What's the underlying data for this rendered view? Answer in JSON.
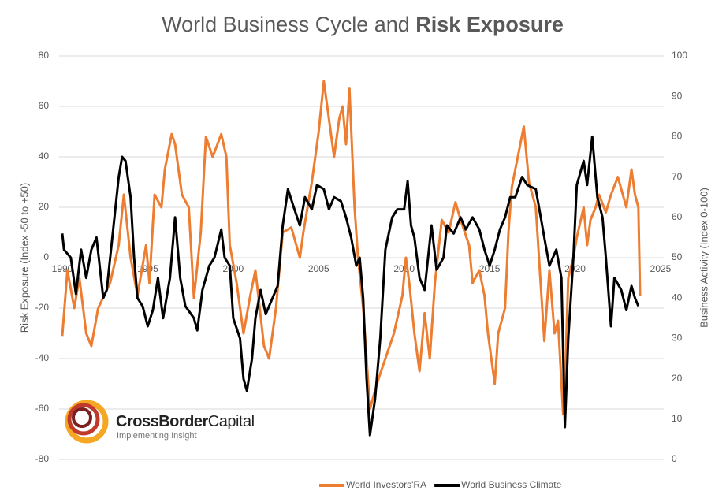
{
  "chart_data": {
    "type": "line",
    "title": {
      "text": "World Business Cycle and",
      "emphasis": "Risk Exposure"
    },
    "y_label": "Risk Exposure (Index -50 to +50)",
    "y2_label": "Business Activity (Index 0-100)",
    "xlim": [
      1990,
      2025
    ],
    "xticks": [
      1990,
      1995,
      2000,
      2005,
      2010,
      2015,
      2020,
      2025
    ],
    "ylim": [
      -80,
      80
    ],
    "yticks": [
      -80,
      -60,
      -40,
      -20,
      0,
      20,
      40,
      60,
      80
    ],
    "y2lim": [
      0,
      100
    ],
    "y2ticks": [
      0,
      10,
      20,
      30,
      40,
      50,
      60,
      70,
      80,
      90,
      100
    ],
    "grid": true,
    "legend": "bottom",
    "series": [
      {
        "name": "World Investors'RA",
        "color": "#ed7d31",
        "axis": "y",
        "x": [
          1990.0,
          1990.3,
          1990.7,
          1991.0,
          1991.4,
          1991.7,
          1992.1,
          1992.8,
          1993.3,
          1993.6,
          1994.0,
          1994.4,
          1994.9,
          1995.1,
          1995.4,
          1995.8,
          1996.0,
          1996.4,
          1996.6,
          1997.0,
          1997.4,
          1997.7,
          1998.1,
          1998.4,
          1998.8,
          1999.3,
          1999.6,
          1999.8,
          2000.2,
          2000.6,
          2001.0,
          2001.3,
          2001.8,
          2002.1,
          2002.5,
          2002.9,
          2003.4,
          2003.9,
          2004.1,
          2004.6,
          2005.0,
          2005.3,
          2005.6,
          2005.9,
          2006.2,
          2006.4,
          2006.6,
          2006.8,
          2007.1,
          2007.3,
          2007.6,
          2007.8,
          2008.0,
          2008.2,
          2008.5,
          2008.9,
          2009.4,
          2009.9,
          2010.1,
          2010.3,
          2010.6,
          2010.9,
          2011.2,
          2011.5,
          2011.8,
          2012.2,
          2012.6,
          2013.0,
          2013.3,
          2013.8,
          2014.0,
          2014.4,
          2014.7,
          2014.9,
          2015.3,
          2015.5,
          2015.9,
          2016.1,
          2016.3,
          2016.5,
          2017.0,
          2017.3,
          2017.7,
          2018.2,
          2018.5,
          2018.8,
          2019.0,
          2019.3,
          2019.4,
          2019.6,
          2019.9,
          2020.1,
          2020.5,
          2020.7,
          2020.9,
          2021.2,
          2021.4,
          2021.8,
          2022.1,
          2022.5,
          2023.0,
          2023.3,
          2023.5,
          2023.7,
          2023.8
        ],
        "values": [
          -31,
          -5,
          -20,
          -8,
          -30,
          -35,
          -20,
          -10,
          5,
          25,
          0,
          -15,
          5,
          -10,
          25,
          20,
          35,
          49,
          45,
          25,
          20,
          -16,
          10,
          48,
          40,
          49,
          40,
          5,
          -10,
          -30,
          -15,
          -5,
          -35,
          -40,
          -20,
          10,
          12,
          0,
          10,
          30,
          50,
          70,
          55,
          40,
          55,
          60,
          45,
          67,
          20,
          0,
          -20,
          -40,
          -60,
          -55,
          -48,
          -40,
          -30,
          -15,
          0,
          -10,
          -30,
          -45,
          -22,
          -40,
          -10,
          15,
          10,
          22,
          15,
          5,
          -10,
          -5,
          -15,
          -30,
          -50,
          -30,
          -20,
          10,
          28,
          35,
          52,
          30,
          20,
          -33,
          -5,
          -30,
          -25,
          -62,
          -50,
          -8,
          0,
          8,
          20,
          5,
          15,
          20,
          25,
          18,
          25,
          32,
          20,
          35,
          25,
          20,
          -15
        ]
      },
      {
        "name": "World Business Climate",
        "color": "#000000",
        "axis": "y2",
        "x": [
          1990.0,
          1990.1,
          1990.5,
          1990.8,
          1991.1,
          1991.4,
          1991.7,
          1992.0,
          1992.4,
          1992.6,
          1993.0,
          1993.3,
          1993.5,
          1993.7,
          1994.0,
          1994.2,
          1994.4,
          1994.7,
          1995.0,
          1995.3,
          1995.6,
          1995.9,
          1996.3,
          1996.6,
          1996.9,
          1997.2,
          1997.7,
          1997.9,
          1998.2,
          1998.6,
          1998.9,
          1999.3,
          1999.5,
          1999.8,
          2000.0,
          2000.4,
          2000.6,
          2000.8,
          2001.1,
          2001.3,
          2001.6,
          2001.9,
          2002.3,
          2002.6,
          2002.9,
          2003.2,
          2003.5,
          2003.9,
          2004.2,
          2004.6,
          2004.9,
          2005.3,
          2005.6,
          2005.9,
          2006.3,
          2006.6,
          2006.9,
          2007.2,
          2007.4,
          2007.6,
          2007.8,
          2008.0,
          2008.3,
          2008.6,
          2008.9,
          2009.3,
          2009.6,
          2010.0,
          2010.2,
          2010.4,
          2010.6,
          2010.9,
          2011.2,
          2011.6,
          2011.9,
          2012.3,
          2012.5,
          2012.9,
          2013.3,
          2013.6,
          2014.0,
          2014.4,
          2014.7,
          2015.0,
          2015.3,
          2015.6,
          2015.9,
          2016.2,
          2016.5,
          2016.9,
          2017.2,
          2017.7,
          2018.2,
          2018.5,
          2018.9,
          2019.2,
          2019.4,
          2019.6,
          2019.9,
          2020.1,
          2020.5,
          2020.7,
          2021.0,
          2021.3,
          2021.6,
          2021.8,
          2022.1,
          2022.3,
          2022.7,
          2023.0,
          2023.3,
          2023.5,
          2023.7
        ],
        "values": [
          56,
          52,
          50,
          41,
          52,
          45,
          52,
          55,
          40,
          42,
          58,
          70,
          75,
          74,
          65,
          50,
          40,
          38,
          33,
          37,
          45,
          35,
          45,
          60,
          45,
          38,
          35,
          32,
          42,
          48,
          50,
          57,
          50,
          48,
          35,
          30,
          20,
          17,
          25,
          35,
          42,
          36,
          40,
          43,
          58,
          67,
          63,
          58,
          65,
          62,
          68,
          67,
          62,
          65,
          64,
          60,
          55,
          48,
          50,
          40,
          20,
          6,
          15,
          30,
          52,
          60,
          62,
          62,
          69,
          58,
          55,
          45,
          42,
          58,
          47,
          50,
          58,
          56,
          60,
          57,
          60,
          57,
          52,
          48,
          52,
          57,
          60,
          65,
          65,
          70,
          68,
          67,
          55,
          48,
          52,
          45,
          8,
          30,
          50,
          68,
          74,
          68,
          80,
          65,
          60,
          50,
          33,
          45,
          42,
          37,
          43,
          40,
          38
        ]
      }
    ]
  },
  "logo": {
    "name_bold": "CrossBorder",
    "name": "Capital",
    "tagline": "Implementing Insight"
  }
}
